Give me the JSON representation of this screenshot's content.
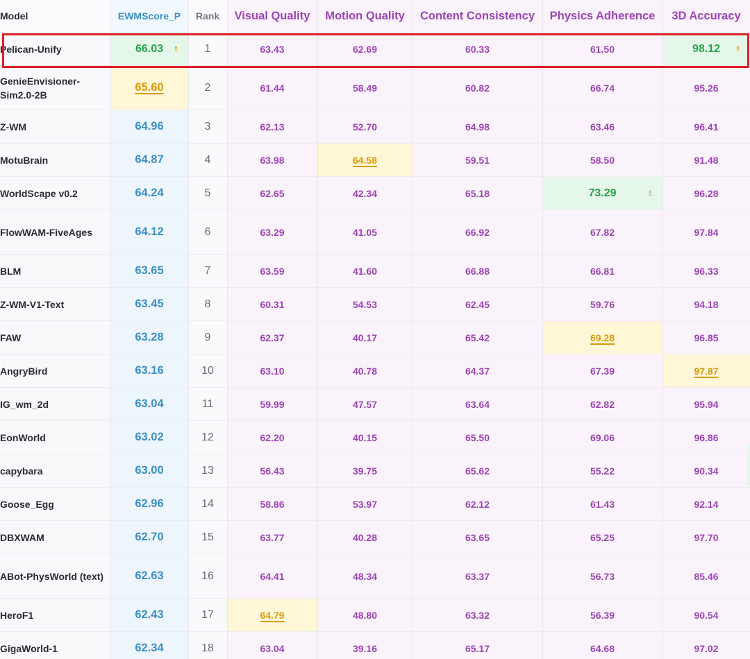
{
  "header": {
    "model": "Model",
    "ewm": "EWMScore_P",
    "rank": "Rank",
    "visual": "Visual Quality",
    "motion": "Motion Quality",
    "content": "Content Consistency",
    "physics": "Physics Adherence",
    "accuracy": "3D Accuracy"
  },
  "icons": {
    "best_marker": "trophy-icon"
  },
  "colors": {
    "best_green": "#27a24a",
    "second_gold": "#d89a0a",
    "score_blue": "#3b8fc4",
    "dimension_purple": "#9b44b3",
    "selection_red": "#dd1f26"
  },
  "rows": [
    {
      "model": "Pelican-Unify",
      "ewm": "66.03",
      "rank": "1",
      "visual": "63.43",
      "motion": "62.69",
      "content": "60.33",
      "physics": "61.50",
      "accuracy": "98.12",
      "best": [
        "ewm",
        "accuracy"
      ],
      "second": [],
      "selected": true
    },
    {
      "model": "GenieEnvisioner-Sim2.0-2B",
      "ewm": "65.60",
      "rank": "2",
      "visual": "61.44",
      "motion": "58.49",
      "content": "60.82",
      "physics": "66.74",
      "accuracy": "95.26",
      "best": [],
      "second": [
        "ewm"
      ]
    },
    {
      "model": "Z-WM",
      "ewm": "64.96",
      "rank": "3",
      "visual": "62.13",
      "motion": "52.70",
      "content": "64.98",
      "physics": "63.46",
      "accuracy": "96.41",
      "best": [],
      "second": []
    },
    {
      "model": "MotuBrain",
      "ewm": "64.87",
      "rank": "4",
      "visual": "63.98",
      "motion": "64.58",
      "content": "59.51",
      "physics": "58.50",
      "accuracy": "91.48",
      "best": [],
      "second": [
        "motion"
      ]
    },
    {
      "model": "WorldScape v0.2",
      "ewm": "64.24",
      "rank": "5",
      "visual": "62.65",
      "motion": "42.34",
      "content": "65.18",
      "physics": "73.29",
      "accuracy": "96.28",
      "best": [
        "physics"
      ],
      "second": []
    },
    {
      "model": "FlowWAM-FiveAges",
      "ewm": "64.12",
      "rank": "6",
      "visual": "63.29",
      "motion": "41.05",
      "content": "66.92",
      "physics": "67.82",
      "accuracy": "97.84",
      "best": [],
      "second": []
    },
    {
      "model": "BLM",
      "ewm": "63.65",
      "rank": "7",
      "visual": "63.59",
      "motion": "41.60",
      "content": "66.88",
      "physics": "66.81",
      "accuracy": "96.33",
      "best": [],
      "second": []
    },
    {
      "model": "Z-WM-V1-Text",
      "ewm": "63.45",
      "rank": "8",
      "visual": "60.31",
      "motion": "54.53",
      "content": "62.45",
      "physics": "59.76",
      "accuracy": "94.18",
      "best": [],
      "second": []
    },
    {
      "model": "FAW",
      "ewm": "63.28",
      "rank": "9",
      "visual": "62.37",
      "motion": "40.17",
      "content": "65.42",
      "physics": "69.28",
      "accuracy": "96.85",
      "best": [],
      "second": [
        "physics"
      ]
    },
    {
      "model": "AngryBird",
      "ewm": "63.16",
      "rank": "10",
      "visual": "63.10",
      "motion": "40.78",
      "content": "64.37",
      "physics": "67.39",
      "accuracy": "97.87",
      "best": [],
      "second": [
        "accuracy"
      ]
    },
    {
      "model": "IG_wm_2d",
      "ewm": "63.04",
      "rank": "11",
      "visual": "59.99",
      "motion": "47.57",
      "content": "63.64",
      "physics": "62.82",
      "accuracy": "95.94",
      "best": [],
      "second": []
    },
    {
      "model": "EonWorld",
      "ewm": "63.02",
      "rank": "12",
      "visual": "62.20",
      "motion": "40.15",
      "content": "65.50",
      "physics": "69.06",
      "accuracy": "96.86",
      "best": [],
      "second": []
    },
    {
      "model": "capybara",
      "ewm": "63.00",
      "rank": "13",
      "visual": "56.43",
      "motion": "39.75",
      "content": "65.62",
      "physics": "55.22",
      "accuracy": "90.34",
      "best": [],
      "second": []
    },
    {
      "model": "Goose_Egg",
      "ewm": "62.96",
      "rank": "14",
      "visual": "58.86",
      "motion": "53.97",
      "content": "62.12",
      "physics": "61.43",
      "accuracy": "92.14",
      "best": [],
      "second": []
    },
    {
      "model": "DBXWAM",
      "ewm": "62.70",
      "rank": "15",
      "visual": "63.77",
      "motion": "40.28",
      "content": "63.65",
      "physics": "65.25",
      "accuracy": "97.70",
      "best": [],
      "second": []
    },
    {
      "model": "ABot-PhysWorld (text)",
      "ewm": "62.63",
      "rank": "16",
      "visual": "64.41",
      "motion": "48.34",
      "content": "63.37",
      "physics": "56.73",
      "accuracy": "85.46",
      "best": [],
      "second": []
    },
    {
      "model": "HeroF1",
      "ewm": "62.43",
      "rank": "17",
      "visual": "64.79",
      "motion": "48.80",
      "content": "63.32",
      "physics": "56.39",
      "accuracy": "90.54",
      "best": [],
      "second": [
        "visual"
      ]
    },
    {
      "model": "GigaWorld-1",
      "ewm": "62.34",
      "rank": "18",
      "visual": "63.04",
      "motion": "39.16",
      "content": "65.17",
      "physics": "64.68",
      "accuracy": "97.02",
      "best": [],
      "second": []
    }
  ]
}
